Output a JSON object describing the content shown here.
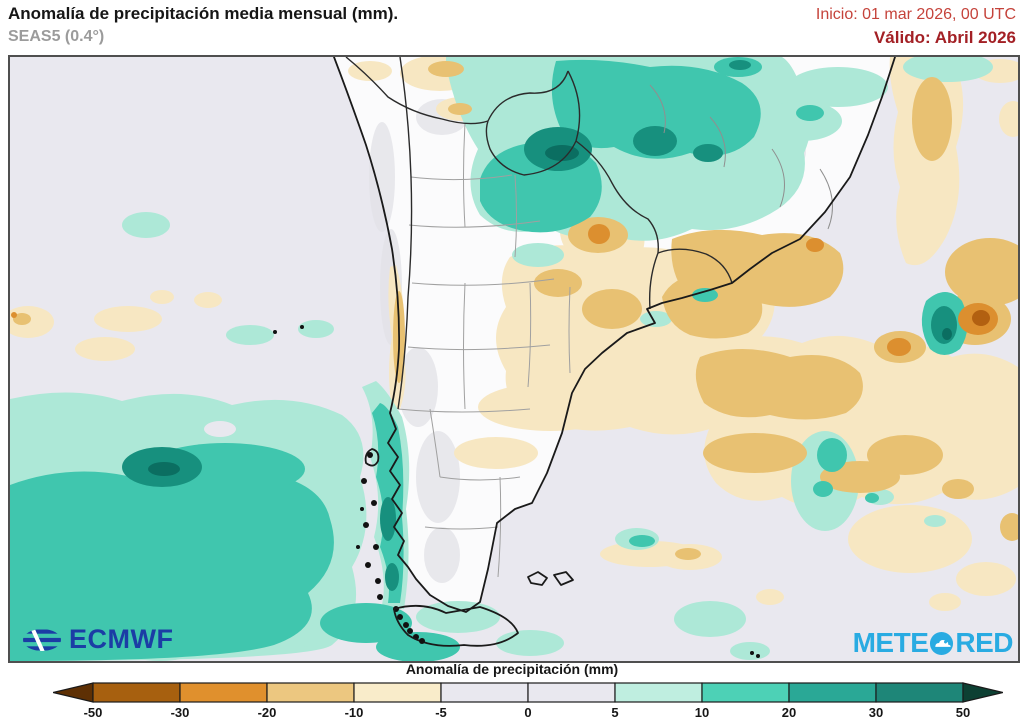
{
  "header": {
    "title": "Anomalía de precipitación media mensual (mm).",
    "subtitle": "SEAS5 (0.4°)",
    "init_label": "Inicio: 01 mar 2026, 00 UTC",
    "valid_label": "Válido: Abril 2026"
  },
  "map": {
    "region": "southern-south-america",
    "variable": "monthly mean precipitation anomaly (mm)"
  },
  "logos": {
    "ecmwf": "ECMWF",
    "meteored_prefix": "METE",
    "meteored_suffix": "RED"
  },
  "colorbar": {
    "label": "Anomalía de precipitación (mm)",
    "ticks": [
      "-50",
      "-30",
      "-20",
      "-10",
      "-5",
      "0",
      "5",
      "10",
      "20",
      "30",
      "50"
    ],
    "segment_colors": [
      "#a7600f",
      "#e0902d",
      "#ecc780",
      "#f9ecca",
      "#e9e8ef",
      "#e9e8ef",
      "#bfeee0",
      "#4dd1b6",
      "#2aa896",
      "#1e8678"
    ],
    "left_arrow_color": "#5e3004",
    "right_arrow_color": "#0d4033"
  },
  "colors": {
    "ocean": "#e9e8ef",
    "land": "#fbfbfc",
    "teal_light": "#ade8d7",
    "teal_mid": "#40c6ae",
    "teal_dark": "#17907e",
    "teal_core": "#0b6e61",
    "sand_light": "#f7e7c2",
    "sand_mid": "#e8c172",
    "orange": "#dc8f2f",
    "orange_dark": "#b26011",
    "ecmwf_blue": "#1b3da5",
    "meteored_blue": "#29abe2",
    "init_red": "#c5433b",
    "valid_red": "#a32025"
  }
}
